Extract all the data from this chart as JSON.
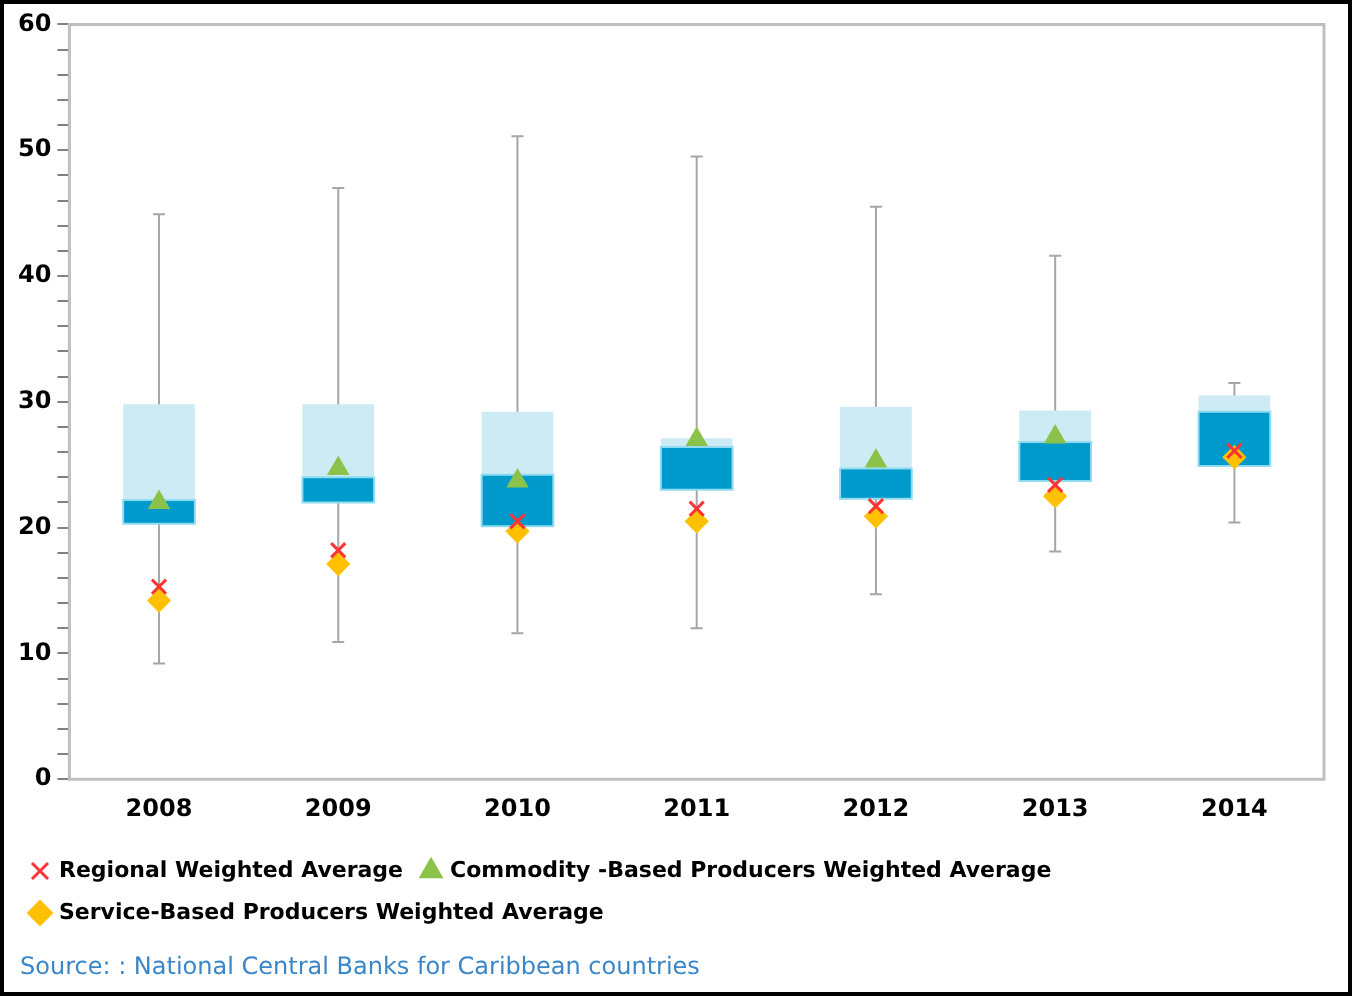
{
  "chart_data": {
    "type": "box",
    "categories": [
      "2008",
      "2009",
      "2010",
      "2011",
      "2012",
      "2013",
      "2014"
    ],
    "ylim": [
      0,
      60
    ],
    "yticks": [
      0,
      {
        "value": 2,
        "label": null
      },
      {
        "value": 4,
        "label": null
      },
      {
        "value": 6,
        "label": null
      },
      {
        "value": 8,
        "label": null
      },
      10,
      {
        "value": 12,
        "label": null
      },
      {
        "value": 14,
        "label": null
      },
      {
        "value": 16,
        "label": null
      },
      {
        "value": 18,
        "label": null
      },
      20,
      {
        "value": 22,
        "label": null
      },
      {
        "value": 24,
        "label": null
      },
      {
        "value": 26,
        "label": null
      },
      {
        "value": 28,
        "label": null
      },
      30,
      {
        "value": 32,
        "label": null
      },
      {
        "value": 34,
        "label": null
      },
      {
        "value": 36,
        "label": null
      },
      {
        "value": 38,
        "label": null
      },
      40,
      {
        "value": 42,
        "label": null
      },
      {
        "value": 44,
        "label": null
      },
      {
        "value": 46,
        "label": null
      },
      {
        "value": 48,
        "label": null
      },
      50,
      {
        "value": 52,
        "label": null
      },
      {
        "value": 54,
        "label": null
      },
      {
        "value": 56,
        "label": null
      },
      {
        "value": 58,
        "label": null
      },
      60
    ],
    "grid": false,
    "legend": "bottom",
    "series": [
      {
        "type": "box",
        "color": "#0099cc",
        "boxes": [
          {
            "low": 9.2,
            "q1": 20.3,
            "median": 22.2,
            "q3": 29.8,
            "high": 44.9
          },
          {
            "low": 10.9,
            "q1": 22.0,
            "median": 24.0,
            "q3": 29.8,
            "high": 47.0
          },
          {
            "low": 11.6,
            "q1": 20.1,
            "median": 24.2,
            "q3": 29.2,
            "high": 51.1
          },
          {
            "low": 12.0,
            "q1": 23.0,
            "median": 26.4,
            "q3": 27.1,
            "high": 49.5
          },
          {
            "low": 14.7,
            "q1": 22.3,
            "median": 24.7,
            "q3": 29.6,
            "high": 45.5
          },
          {
            "low": 18.1,
            "q1": 23.7,
            "median": 26.8,
            "q3": 29.3,
            "high": 41.6
          },
          {
            "low": 20.4,
            "q1": 24.9,
            "median": 29.2,
            "q3": 30.5,
            "high": 31.5
          }
        ]
      },
      {
        "type": "scatter",
        "name": "Regional Weighted Average",
        "color": "#ff3333",
        "marker": "cross",
        "values": [
          15.3,
          18.2,
          20.5,
          21.5,
          21.7,
          23.4,
          26.1
        ]
      },
      {
        "type": "scatter",
        "name": "Commodity -Based Producers Weighted Average",
        "color": "#8bc34a",
        "marker": "triangle",
        "values": [
          22.0,
          24.7,
          23.7,
          27.0,
          25.3,
          27.2,
          null
        ]
      },
      {
        "type": "scatter",
        "name": "Service-Based Producers Weighted Average",
        "color": "#ffc000",
        "marker": "diamond",
        "values": [
          14.2,
          17.1,
          19.7,
          20.5,
          20.9,
          22.5,
          25.6
        ]
      }
    ],
    "annotations": [
      "Source: : National Central Banks for Caribbean countries"
    ]
  }
}
